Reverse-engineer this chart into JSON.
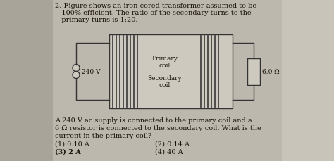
{
  "bg_color": "#bdb8ae",
  "left_bg": "#a8a49a",
  "right_bg": "#c8c4ba",
  "title_text1": "2. Figure shows an iron-cored transformer assumed to be",
  "title_text2": "   100% efficient. The ratio of the secondary turns to the",
  "title_text3": "   primary turns is 1:20.",
  "voltage_label": "240 V",
  "primary_label": "Primary\ncoil",
  "secondary_label": "Secondary\ncoil",
  "resistor_label": "6.0 Ω",
  "body_line1": "A 240 V ac supply is connected to the primary coil and a",
  "body_line2": "6 Ω resistor is connected to the secondary coil. What is the",
  "body_line3": "current in the primary coil?",
  "option1": "(1) 0.10 A",
  "option2": "(2) 0.14 A",
  "option3": "(3) 2 A",
  "option4": "(4) 40 A",
  "text_color": "#1a1209",
  "wire_color": "#333333",
  "box_face": "#cdc8bc",
  "core_color": "#888070",
  "line_color": "#555045"
}
